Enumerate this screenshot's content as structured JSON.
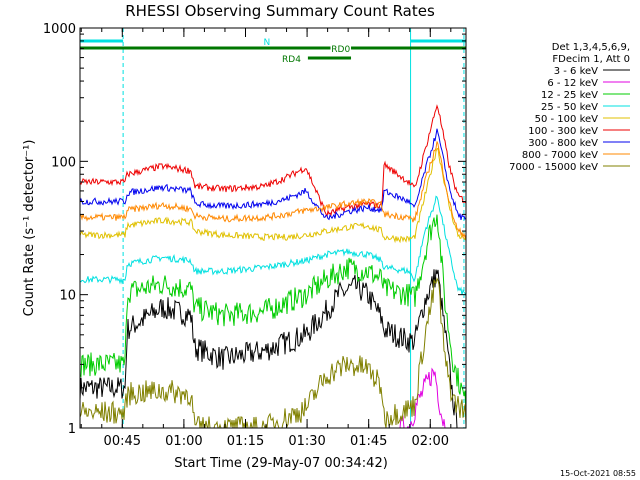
{
  "chart_data": {
    "type": "line",
    "title": "RHESSI Observing Summary Count Rates",
    "xlabel": "Start Time (29-May-07 00:34:42)",
    "ylabel": "Count Rate (s⁻¹ detector⁻¹)",
    "yscale": "log",
    "ylim": [
      1,
      1000
    ],
    "xlim_minutes": [
      0,
      94
    ],
    "x_tick_labels": [
      {
        "label": "00:45",
        "minute": 10.3
      },
      {
        "label": "01:00",
        "minute": 25.3
      },
      {
        "label": "01:15",
        "minute": 40.3
      },
      {
        "label": "01:30",
        "minute": 55.3
      },
      {
        "label": "01:45",
        "minute": 70.3
      },
      {
        "label": "02:00",
        "minute": 85.3
      }
    ],
    "y_tick_labels": [
      {
        "label": "1",
        "value": 1
      },
      {
        "label": "10",
        "value": 10
      },
      {
        "label": "100",
        "value": 100
      },
      {
        "label": "1000",
        "value": 1000
      }
    ],
    "legend_header": [
      "Det 1,3,4,5,6,9,",
      "FDecim 1, Att 0"
    ],
    "legend_placement": "top-right",
    "series": [
      {
        "name": "3 - 6 keV",
        "color": "#000000",
        "x": [
          0,
          5,
          11,
          11.5,
          20,
          27,
          28,
          35,
          45,
          55,
          60,
          63,
          67,
          70,
          72,
          73.5,
          74,
          80,
          81.5,
          84,
          87,
          89,
          91,
          92
        ],
        "y": [
          2,
          2,
          2,
          5.5,
          8,
          7,
          4,
          3.3,
          3.8,
          5,
          7.5,
          10,
          11.5,
          10,
          8,
          6.5,
          5.5,
          4.5,
          4.5,
          9,
          15,
          5,
          1.5,
          1
        ]
      },
      {
        "name": "6 - 12 keV",
        "color": "#e000e0",
        "x": [
          78,
          80,
          82,
          84,
          85.5,
          86.5,
          87,
          88,
          89
        ],
        "y": [
          1,
          1,
          1.5,
          2,
          2.5,
          2.6,
          2,
          1.3,
          1
        ]
      },
      {
        "name": "12 - 25 keV",
        "color": "#00cc00",
        "x": [
          0,
          11,
          11.5,
          20,
          27,
          28,
          35,
          45,
          55,
          60,
          65,
          70,
          73.5,
          74,
          80,
          81.5,
          85,
          87,
          89,
          91,
          94
        ],
        "y": [
          3,
          3,
          10.5,
          12,
          11,
          8,
          7,
          7.5,
          10,
          13,
          16,
          15,
          13,
          11,
          10,
          9.5,
          28,
          42,
          8,
          3,
          1.5
        ]
      },
      {
        "name": "25 - 50 keV",
        "color": "#00e0e0",
        "x": [
          0,
          11,
          11.5,
          20,
          27,
          28,
          35,
          45,
          55,
          60,
          65,
          70,
          73.5,
          74,
          80,
          81.5,
          84,
          87,
          90,
          92,
          94
        ],
        "y": [
          13,
          13,
          17,
          19,
          18,
          15,
          15,
          16,
          18,
          20,
          21,
          20,
          18,
          16,
          15,
          13,
          30,
          55,
          20,
          11,
          10
        ]
      },
      {
        "name": "50 - 100 keV",
        "color": "#e0c000",
        "x": [
          0,
          11,
          11.5,
          20,
          27,
          28,
          35,
          45,
          50,
          55,
          60,
          65,
          70,
          73.5,
          74,
          80,
          81.5,
          84,
          87,
          90,
          92,
          94
        ],
        "y": [
          28,
          28,
          33,
          36,
          35,
          30,
          28,
          27,
          27,
          28,
          30,
          32,
          33,
          30,
          27,
          26,
          27,
          55,
          130,
          45,
          28,
          26
        ]
      },
      {
        "name": "100 - 300 keV",
        "color": "#ee0000",
        "x": [
          0,
          11,
          11.5,
          20,
          27,
          28,
          35,
          45,
          50,
          55,
          60,
          65,
          70,
          73.5,
          74,
          80,
          81.5,
          84,
          87,
          90,
          92,
          94
        ],
        "y": [
          70,
          70,
          80,
          92,
          85,
          65,
          62,
          65,
          75,
          90,
          40,
          45,
          48,
          46,
          95,
          70,
          62,
          120,
          270,
          90,
          55,
          50
        ]
      },
      {
        "name": "300 - 800 keV",
        "color": "#0000ee",
        "x": [
          0,
          11,
          11.5,
          20,
          27,
          28,
          35,
          45,
          50,
          55,
          60,
          65,
          70,
          73.5,
          74,
          80,
          81.5,
          84,
          87,
          90,
          92,
          94
        ],
        "y": [
          50,
          50,
          58,
          64,
          60,
          48,
          46,
          48,
          52,
          60,
          37,
          42,
          45,
          43,
          60,
          50,
          44,
          85,
          170,
          62,
          40,
          36
        ]
      },
      {
        "name": "800 - 7000 keV",
        "color": "#ff8800",
        "x": [
          0,
          11,
          11.5,
          20,
          27,
          28,
          35,
          45,
          50,
          55,
          60,
          65,
          70,
          73.5,
          74,
          80,
          81.5,
          84,
          87,
          90,
          92,
          94
        ],
        "y": [
          38,
          38,
          43,
          47,
          44,
          39,
          37,
          38,
          40,
          43,
          45,
          48,
          50,
          47,
          40,
          38,
          36,
          70,
          140,
          48,
          30,
          28
        ]
      },
      {
        "name": "7000 - 15000 keV",
        "color": "#808000",
        "x": [
          0,
          11,
          11.5,
          20,
          27,
          28,
          35,
          45,
          55,
          60,
          65,
          70,
          73.5,
          74,
          80,
          81.5,
          84,
          87,
          89,
          91,
          94
        ],
        "y": [
          1.3,
          1.3,
          1.8,
          1.9,
          1.8,
          1,
          1,
          1,
          1.4,
          2.5,
          3,
          2.8,
          2,
          1.2,
          1.4,
          1.5,
          5,
          14,
          3,
          1.6,
          1.3
        ]
      }
    ],
    "state_bars": [
      {
        "name": "N",
        "color": "#00e0e0",
        "segments": [
          [
            0,
            10.5
          ],
          [
            80.5,
            94
          ]
        ]
      },
      {
        "name": "RD0",
        "color": "#007700",
        "segments": [
          [
            0,
            61
          ],
          [
            66,
            94
          ]
        ]
      },
      {
        "name": "RD4",
        "color": "#007700",
        "segments": [
          [
            55.5,
            66
          ]
        ]
      }
    ],
    "vertical_markers": [
      {
        "color": "#00e0e0",
        "minute": 0,
        "style": "solid"
      },
      {
        "color": "#00e0e0",
        "minute": 10.5,
        "style": "dashed"
      },
      {
        "color": "#00e0e0",
        "minute": 80.5,
        "style": "solid"
      },
      {
        "color": "#00e0e0",
        "minute": 93.5,
        "style": "dashed"
      }
    ],
    "footer_timestamp": "15-Oct-2021 08:55"
  }
}
